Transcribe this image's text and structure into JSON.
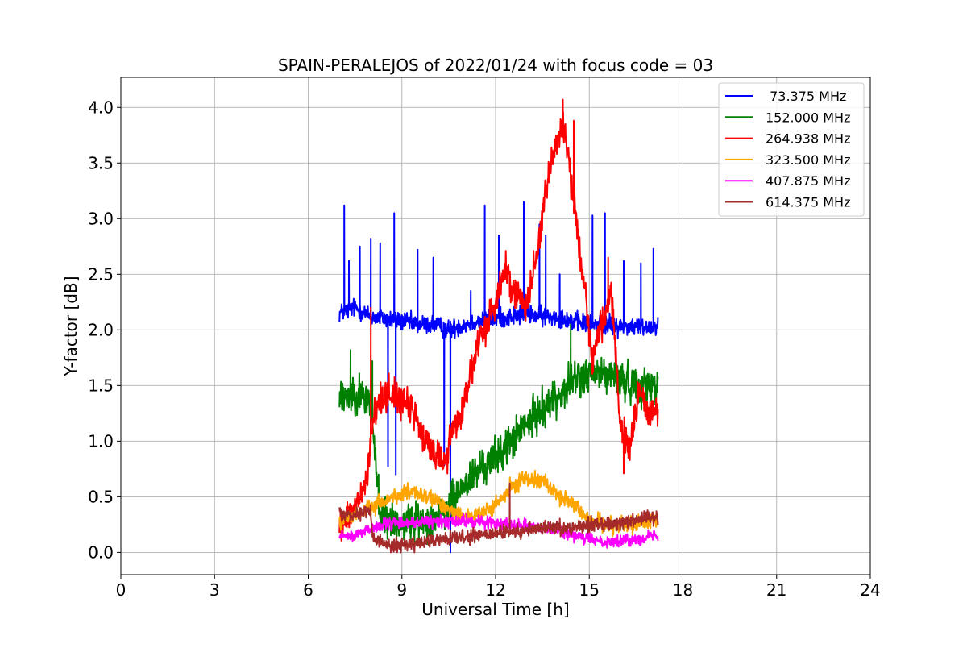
{
  "chart_data": {
    "type": "line",
    "title": "SPAIN-PERALEJOS of 2022/01/24 with focus code = 03",
    "xlabel": "Universal Time [h]",
    "ylabel": "Y-factor [dB]",
    "xlim": [
      0,
      24
    ],
    "ylim": [
      -0.2,
      4.27
    ],
    "x_ticks": [
      0,
      3,
      6,
      9,
      12,
      15,
      18,
      21,
      24
    ],
    "y_ticks": [
      0.0,
      0.5,
      1.0,
      1.5,
      2.0,
      2.5,
      3.0,
      3.5,
      4.0
    ],
    "x_tick_labels": [
      "0",
      "3",
      "6",
      "9",
      "12",
      "15",
      "18",
      "21",
      "24"
    ],
    "y_tick_labels": [
      "0.0",
      "0.5",
      "1.0",
      "1.5",
      "2.0",
      "2.5",
      "3.0",
      "3.5",
      "4.0"
    ],
    "grid": true,
    "legend_position": "top-right",
    "series": [
      {
        "name": " 73.375 MHz",
        "color": "#0000ff",
        "x": [
          7.0,
          7.5,
          8.0,
          8.5,
          9.0,
          9.5,
          10.0,
          10.5,
          11.0,
          11.5,
          12.0,
          12.5,
          13.0,
          13.5,
          14.0,
          14.5,
          15.0,
          15.5,
          16.0,
          16.5,
          17.0,
          17.2
        ],
        "y": [
          2.15,
          2.2,
          2.12,
          2.1,
          2.08,
          2.05,
          2.05,
          2.0,
          2.05,
          2.08,
          2.1,
          2.12,
          2.15,
          2.12,
          2.12,
          2.08,
          2.05,
          2.05,
          2.03,
          2.03,
          2.03,
          2.05
        ],
        "noise": 0.08,
        "spikes": [
          [
            7.15,
            3.12
          ],
          [
            7.3,
            2.62
          ],
          [
            7.65,
            2.75
          ],
          [
            8.0,
            2.82
          ],
          [
            8.3,
            2.78
          ],
          [
            8.55,
            0.77
          ],
          [
            8.75,
            3.05
          ],
          [
            8.8,
            0.7
          ],
          [
            9.5,
            2.72
          ],
          [
            10.0,
            2.65
          ],
          [
            10.35,
            0.78
          ],
          [
            10.55,
            0.0
          ],
          [
            11.2,
            2.35
          ],
          [
            11.65,
            3.12
          ],
          [
            12.1,
            2.85
          ],
          [
            12.9,
            3.15
          ],
          [
            13.4,
            2.95
          ],
          [
            13.6,
            2.85
          ],
          [
            14.05,
            2.5
          ],
          [
            15.1,
            3.03
          ],
          [
            15.5,
            3.05
          ],
          [
            16.1,
            2.62
          ],
          [
            16.65,
            2.6
          ],
          [
            17.05,
            2.73
          ]
        ]
      },
      {
        "name": "152.000 MHz",
        "color": "#008000",
        "x": [
          7.0,
          7.5,
          8.0,
          8.3,
          8.8,
          9.5,
          10.0,
          10.4,
          10.7,
          11.0,
          11.5,
          12.0,
          12.5,
          13.0,
          13.5,
          14.0,
          14.5,
          15.0,
          15.5,
          16.0,
          16.5,
          17.0,
          17.2
        ],
        "y": [
          1.38,
          1.45,
          1.35,
          0.32,
          0.27,
          0.27,
          0.3,
          0.35,
          0.5,
          0.6,
          0.75,
          0.85,
          1.0,
          1.15,
          1.3,
          1.4,
          1.55,
          1.6,
          1.6,
          1.55,
          1.5,
          1.5,
          1.55
        ],
        "noise": 0.16,
        "spikes": [
          [
            7.35,
            1.82
          ],
          [
            8.05,
            1.72
          ],
          [
            8.25,
            0.7
          ],
          [
            14.4,
            2.05
          ]
        ]
      },
      {
        "name": "264.938 MHz",
        "color": "#ff0000",
        "x": [
          7.0,
          7.5,
          7.9,
          8.05,
          8.3,
          8.6,
          9.0,
          9.4,
          9.7,
          10.0,
          10.4,
          10.6,
          10.9,
          11.2,
          11.5,
          12.0,
          12.3,
          12.7,
          13.0,
          13.3,
          13.6,
          13.9,
          14.2,
          14.5,
          14.8,
          15.1,
          15.4,
          15.7,
          16.0,
          16.3,
          16.6,
          16.9,
          17.2
        ],
        "y": [
          0.22,
          0.4,
          0.65,
          1.15,
          1.38,
          1.45,
          1.35,
          1.25,
          1.0,
          0.92,
          0.8,
          1.1,
          1.25,
          1.6,
          1.9,
          2.25,
          2.55,
          2.3,
          2.25,
          2.65,
          3.25,
          3.65,
          3.85,
          3.15,
          2.5,
          1.75,
          2.05,
          2.35,
          1.1,
          0.95,
          1.45,
          1.25,
          1.3
        ],
        "noise": 0.14,
        "spikes": [
          [
            8.0,
            2.2
          ],
          [
            11.3,
            1.75
          ],
          [
            12.45,
            2.3
          ],
          [
            14.15,
            4.07
          ],
          [
            14.5,
            3.88
          ],
          [
            15.6,
            2.65
          ],
          [
            16.1,
            0.71
          ]
        ]
      },
      {
        "name": "323.500 MHz",
        "color": "#ffa500",
        "x": [
          7.0,
          7.5,
          8.0,
          8.5,
          9.0,
          9.5,
          10.0,
          10.5,
          11.0,
          11.5,
          12.0,
          12.5,
          13.0,
          13.5,
          14.0,
          14.5,
          15.0,
          15.5,
          16.0,
          16.5,
          17.0,
          17.2
        ],
        "y": [
          0.28,
          0.33,
          0.4,
          0.47,
          0.53,
          0.53,
          0.47,
          0.4,
          0.33,
          0.33,
          0.42,
          0.58,
          0.68,
          0.65,
          0.52,
          0.42,
          0.3,
          0.25,
          0.25,
          0.25,
          0.27,
          0.27
        ],
        "noise": 0.07,
        "spikes": []
      },
      {
        "name": "407.875 MHz",
        "color": "#ff00ff",
        "x": [
          7.0,
          7.5,
          8.0,
          8.5,
          9.0,
          9.5,
          10.0,
          10.5,
          11.0,
          11.5,
          12.0,
          12.5,
          13.0,
          13.5,
          14.0,
          14.5,
          15.0,
          15.5,
          16.0,
          16.5,
          17.0,
          17.2
        ],
        "y": [
          0.15,
          0.15,
          0.22,
          0.25,
          0.27,
          0.27,
          0.28,
          0.28,
          0.28,
          0.27,
          0.27,
          0.25,
          0.25,
          0.22,
          0.2,
          0.15,
          0.12,
          0.1,
          0.1,
          0.12,
          0.15,
          0.15
        ],
        "noise": 0.05,
        "spikes": []
      },
      {
        "name": "614.375 MHz",
        "color": "#a52a2a",
        "x": [
          7.0,
          7.5,
          8.0,
          8.05,
          8.5,
          9.0,
          9.5,
          10.0,
          10.5,
          11.0,
          11.5,
          12.0,
          12.5,
          13.0,
          13.5,
          14.0,
          14.5,
          15.0,
          15.5,
          16.0,
          16.5,
          17.0,
          17.2
        ],
        "y": [
          0.35,
          0.35,
          0.38,
          0.12,
          0.08,
          0.07,
          0.08,
          0.1,
          0.12,
          0.13,
          0.15,
          0.17,
          0.18,
          0.2,
          0.22,
          0.22,
          0.23,
          0.25,
          0.26,
          0.27,
          0.3,
          0.32,
          0.32
        ],
        "noise": 0.06,
        "spikes": [
          [
            12.45,
            0.62
          ]
        ]
      }
    ]
  }
}
